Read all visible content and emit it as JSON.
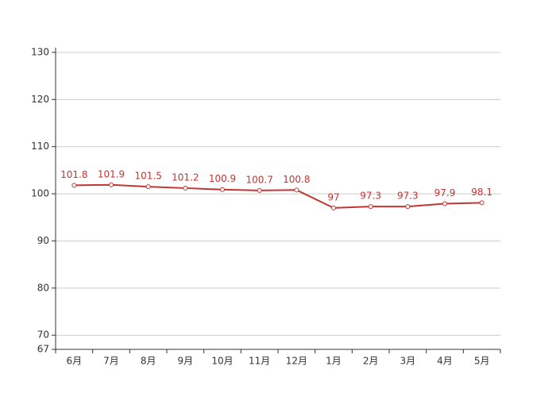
{
  "chart_data": {
    "type": "line",
    "categories": [
      "6月",
      "7月",
      "8月",
      "9月",
      "10月",
      "11月",
      "12月",
      "1月",
      "2月",
      "3月",
      "4月",
      "5月"
    ],
    "series": [
      {
        "color": "#c23531",
        "values": [
          101.8,
          101.9,
          101.5,
          101.2,
          100.9,
          100.7,
          100.8,
          97,
          97.3,
          97.3,
          97.9,
          98.1
        ]
      }
    ],
    "ylim": [
      67,
      131
    ],
    "yticks": [
      67,
      70,
      80,
      90,
      100,
      110,
      120,
      130
    ],
    "grid": true
  }
}
